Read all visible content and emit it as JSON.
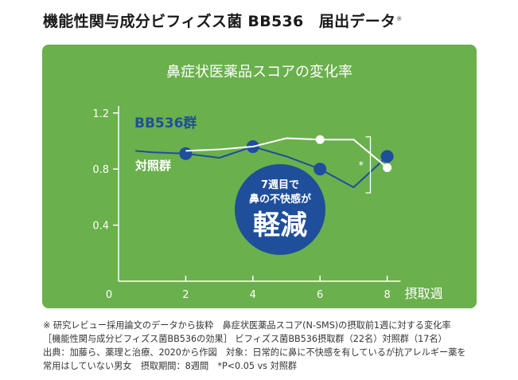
{
  "heading": {
    "text": "機能性関与成分ビフィズス菌 BB536　届出データ",
    "mark": "※"
  },
  "chart_data": {
    "type": "line",
    "title": "鼻症状医薬品スコアの変化率",
    "xlabel": "摂取週",
    "ylabel": "",
    "x_ticks": [
      0,
      2,
      4,
      6,
      8
    ],
    "y_ticks": [
      0.4,
      0.8,
      1.2
    ],
    "y_tick_labels": [
      "0.4",
      "0.8",
      "1.2"
    ],
    "x_origin_label": "0",
    "xlim": [
      0,
      8.4
    ],
    "ylim": [
      0,
      1.25
    ],
    "series": [
      {
        "name": "BB536群",
        "color": "#1f4e9b",
        "x": [
          0.5,
          1,
          2,
          3,
          4,
          5,
          6,
          7,
          8
        ],
        "y": [
          0.93,
          0.92,
          0.91,
          0.88,
          0.96,
          0.89,
          0.8,
          0.67,
          0.89
        ],
        "markers": [
          2,
          4,
          6,
          8
        ]
      },
      {
        "name": "対照群",
        "color": "#ffffff",
        "x": [
          2,
          3,
          4,
          5,
          6,
          7,
          8
        ],
        "y": [
          0.93,
          0.94,
          0.96,
          1.02,
          1.01,
          1.01,
          0.81
        ],
        "markers": [
          6,
          8
        ]
      }
    ],
    "significance": {
      "from_week": 6,
      "to_week": 8,
      "label": "*"
    },
    "callout": {
      "line1": "7週目で",
      "line2": "鼻の不快感が",
      "big": "軽減"
    }
  },
  "footnotes": [
    "※ 研究レビュー採用論文のデータから抜粋　鼻症状医薬品スコア(N-SMS)の摂取前1週に対する変化率",
    "［機能性関与成分ビフィズス菌BB536の効果］ ビフィズス菌BB536摂取群（22名）対照群（17名）",
    "出典：加藤ら、薬理と治療、2020から作図　対象：日常的に鼻に不快感を有しているが抗アレルギー薬を",
    "常用はしていない男女　摂取期間：8週間　*P<0.05 vs 対照群"
  ],
  "colors": {
    "panel": "#6ab04c",
    "bb536": "#1f4e9b",
    "control": "#ffffff",
    "axis": "#ffffff"
  }
}
